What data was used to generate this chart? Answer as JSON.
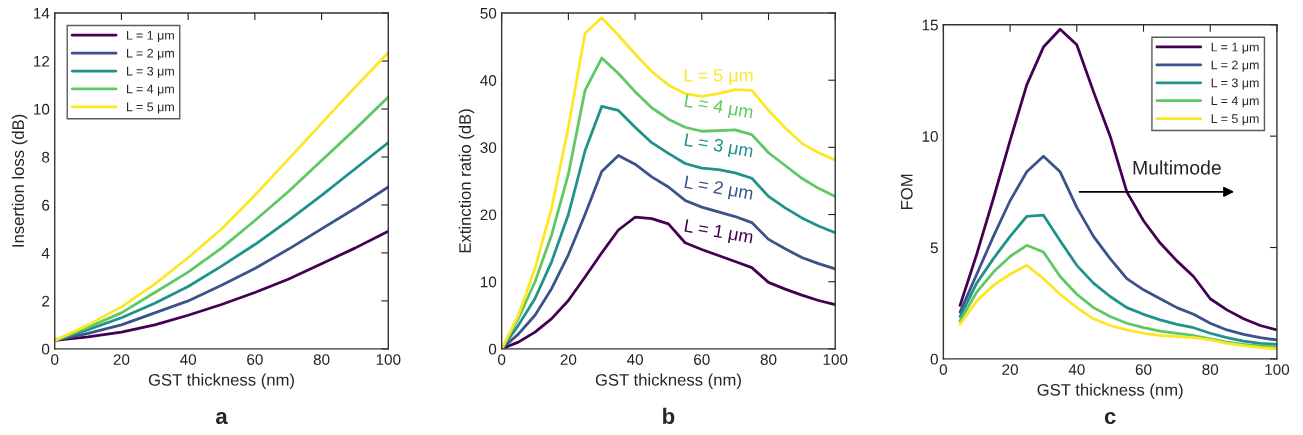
{
  "chart_data": [
    {
      "type": "line",
      "xlabel": "GST thickness (nm)",
      "ylabel": "Insertion loss (dB)",
      "x": [
        0,
        10,
        20,
        30,
        40,
        50,
        60,
        70,
        80,
        90,
        100
      ],
      "xlim": [
        0,
        100
      ],
      "xticks": [
        0,
        20,
        40,
        60,
        80,
        100
      ],
      "ylim": [
        0,
        14
      ],
      "yticks": [
        0,
        2,
        4,
        6,
        8,
        10,
        12,
        14
      ],
      "legend": "top left",
      "grid": false,
      "marker": "none",
      "line_style": "solid",
      "annotations": [
        "a"
      ],
      "series": [
        {
          "name": "L = 1 μm",
          "color": "#440154",
          "values": [
            0.35,
            0.5,
            0.7,
            1.0,
            1.4,
            1.85,
            2.35,
            2.9,
            3.55,
            4.2,
            4.9
          ]
        },
        {
          "name": "L = 2 μm",
          "color": "#3b528b",
          "values": [
            0.35,
            0.65,
            1.0,
            1.5,
            2.0,
            2.65,
            3.35,
            4.15,
            5.0,
            5.85,
            6.75
          ]
        },
        {
          "name": "L = 3 μm",
          "color": "#21918c",
          "values": [
            0.35,
            0.8,
            1.3,
            1.9,
            2.6,
            3.45,
            4.35,
            5.35,
            6.4,
            7.5,
            8.6
          ]
        },
        {
          "name": "L = 4 μm",
          "color": "#5ec962",
          "values": [
            0.35,
            0.9,
            1.5,
            2.35,
            3.2,
            4.2,
            5.35,
            6.55,
            7.85,
            9.15,
            10.5
          ]
        },
        {
          "name": "L = 5 μm",
          "color": "#fde725",
          "values": [
            0.35,
            1.0,
            1.75,
            2.7,
            3.8,
            5.0,
            6.4,
            7.9,
            9.4,
            10.9,
            12.35
          ]
        }
      ]
    },
    {
      "type": "line",
      "xlabel": "GST thickness (nm)",
      "ylabel": "Extinction ratio (dB)",
      "x": [
        0,
        5,
        10,
        15,
        20,
        25,
        30,
        35,
        40,
        45,
        50,
        55,
        60,
        65,
        70,
        75,
        80,
        85,
        90,
        95,
        100
      ],
      "xlim": [
        0,
        100
      ],
      "xticks": [
        0,
        20,
        40,
        60,
        80,
        100
      ],
      "ylim": [
        0,
        50
      ],
      "yticks": [
        0,
        10,
        20,
        30,
        40,
        50
      ],
      "legend": false,
      "grid": false,
      "marker": "none",
      "line_style": "solid",
      "annotations": [
        "b"
      ],
      "series": [
        {
          "name": "L = 1 μm",
          "color": "#440154",
          "values": [
            0,
            1,
            2.5,
            4.5,
            7.2,
            10.7,
            14.3,
            17.7,
            19.6,
            19.4,
            18.6,
            15.8,
            14.8,
            13.9,
            13.0,
            12.1,
            9.9,
            8.9,
            8.0,
            7.2,
            6.6
          ]
        },
        {
          "name": "L = 2 μm",
          "color": "#3b528b",
          "values": [
            0,
            2.2,
            5,
            9,
            14,
            20,
            26.4,
            28.8,
            27.5,
            25.6,
            24.1,
            22.1,
            21.1,
            20.4,
            19.7,
            18.8,
            16.3,
            14.9,
            13.6,
            12.7,
            11.9
          ]
        },
        {
          "name": "L = 3 μm",
          "color": "#21918c",
          "values": [
            0,
            3.5,
            7.5,
            13,
            20,
            29.5,
            36.1,
            35.5,
            33,
            30.7,
            29.1,
            27.6,
            26.9,
            26.7,
            26.2,
            25.4,
            22.7,
            21.0,
            19.5,
            18.3,
            17.3
          ]
        },
        {
          "name": "L = 4 μm",
          "color": "#5ec962",
          "values": [
            0,
            4.5,
            10,
            17,
            26,
            38.5,
            43.3,
            41,
            38.3,
            35.9,
            34.2,
            33,
            32.4,
            32.5,
            32.6,
            31.9,
            29.2,
            27.3,
            25.4,
            23.9,
            22.7
          ]
        },
        {
          "name": "L = 5 μm",
          "color": "#fde725",
          "values": [
            0,
            5,
            12,
            21,
            33,
            47,
            49.3,
            46.7,
            43.9,
            41.3,
            39.3,
            38,
            37.6,
            38,
            38.6,
            38.5,
            35.5,
            32.9,
            30.6,
            29.2,
            28.1
          ]
        }
      ]
    },
    {
      "type": "line",
      "xlabel": "GST thickness (nm)",
      "ylabel": "FOM",
      "x": [
        5,
        10,
        15,
        20,
        25,
        30,
        35,
        40,
        45,
        50,
        55,
        60,
        65,
        70,
        75,
        80,
        85,
        90,
        95,
        100
      ],
      "xlim": [
        0,
        100
      ],
      "xticks": [
        0,
        20,
        40,
        60,
        80,
        100
      ],
      "ylim": [
        0,
        15
      ],
      "yticks": [
        0,
        5,
        10,
        15
      ],
      "legend": "top right",
      "grid": false,
      "marker": "none",
      "line_style": "solid",
      "annotations": [
        "Multimode",
        "c"
      ],
      "series": [
        {
          "name": "L = 1 μm",
          "color": "#440154",
          "values": [
            2.4,
            4.7,
            7.2,
            9.8,
            12.3,
            14.0,
            14.8,
            14.1,
            12,
            10,
            7.5,
            6.2,
            5.2,
            4.4,
            3.7,
            2.7,
            2.2,
            1.8,
            1.5,
            1.3
          ]
        },
        {
          "name": "L = 2 μm",
          "color": "#3b528b",
          "values": [
            2.1,
            3.8,
            5.5,
            7.1,
            8.4,
            9.1,
            8.4,
            6.8,
            5.5,
            4.5,
            3.6,
            3.1,
            2.7,
            2.3,
            2.0,
            1.6,
            1.3,
            1.1,
            0.95,
            0.85
          ]
        },
        {
          "name": "L = 3 μm",
          "color": "#21918c",
          "values": [
            1.9,
            3.4,
            4.5,
            5.5,
            6.4,
            6.45,
            5.3,
            4.2,
            3.4,
            2.8,
            2.3,
            2.0,
            1.75,
            1.55,
            1.4,
            1.15,
            0.95,
            0.8,
            0.7,
            0.65
          ]
        },
        {
          "name": "L = 4 μm",
          "color": "#5ec962",
          "values": [
            1.7,
            3.0,
            3.9,
            4.6,
            5.1,
            4.8,
            3.7,
            2.9,
            2.3,
            1.9,
            1.6,
            1.4,
            1.25,
            1.15,
            1.05,
            0.9,
            0.75,
            0.65,
            0.58,
            0.55
          ]
        },
        {
          "name": "L = 5 μm",
          "color": "#fde725",
          "values": [
            1.55,
            2.6,
            3.3,
            3.8,
            4.2,
            3.6,
            2.9,
            2.3,
            1.8,
            1.5,
            1.3,
            1.15,
            1.05,
            1.0,
            0.95,
            0.85,
            0.7,
            0.6,
            0.5,
            0.45
          ]
        }
      ]
    }
  ]
}
